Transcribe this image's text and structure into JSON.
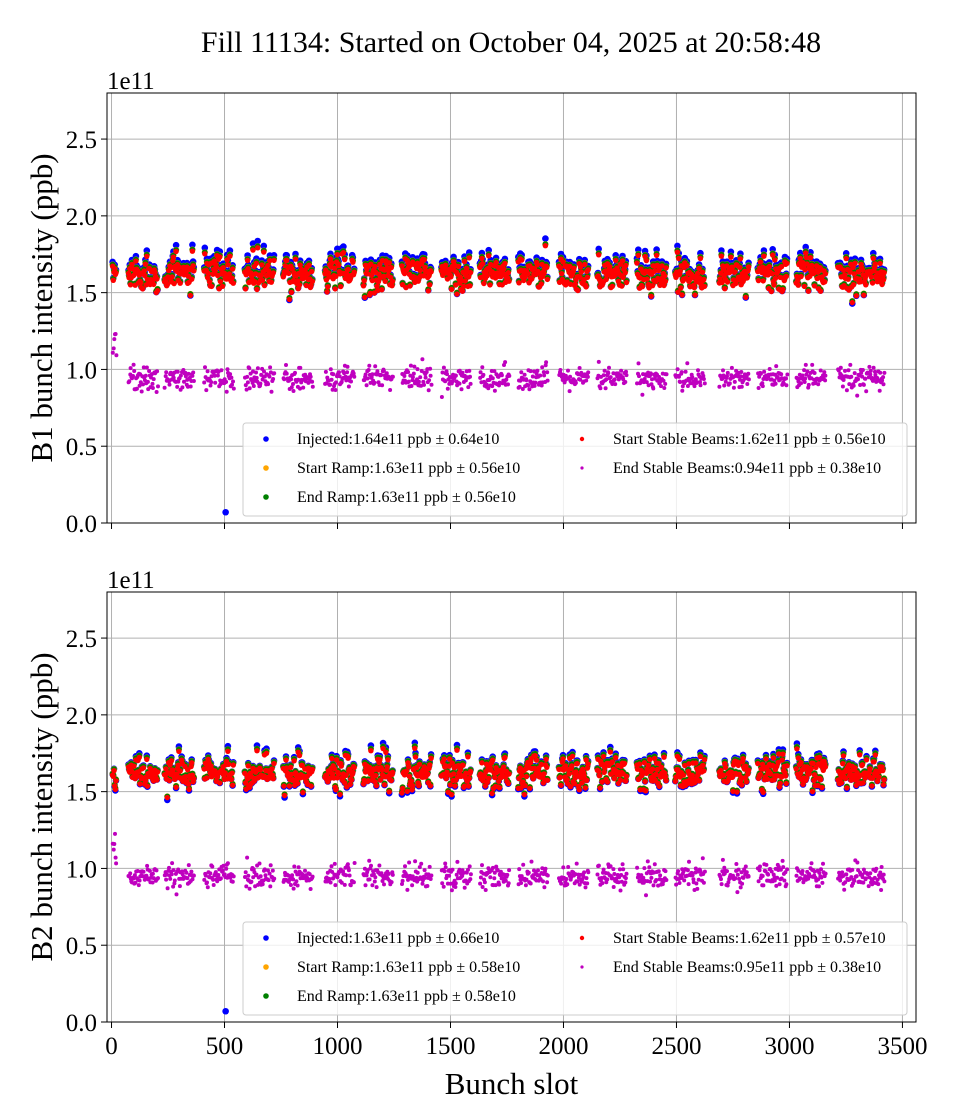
{
  "title": "Fill 11134: Started on October 04, 2025 at 20:58:48",
  "chart_data": [
    {
      "type": "scatter",
      "ylabel": "B1 bunch intensity (ppb)",
      "xlabel": "",
      "offset_text": "1e11",
      "xlim": [
        -20,
        3560
      ],
      "ylim": [
        0,
        2.8
      ],
      "xticks": [
        0,
        500,
        1000,
        1500,
        2000,
        2500,
        3000,
        3500
      ],
      "xtick_labels_shown": false,
      "yticks": [
        "0.0",
        "0.5",
        "1.0",
        "1.5",
        "2.0",
        "2.5"
      ],
      "grid": true,
      "legend_position": "lower-right",
      "bunch_trains": [
        [
          5,
          20
        ],
        [
          75,
          205
        ],
        [
          235,
          365
        ],
        [
          410,
          540
        ],
        [
          590,
          720
        ],
        [
          760,
          890
        ],
        [
          945,
          1075
        ],
        [
          1115,
          1245
        ],
        [
          1285,
          1415
        ],
        [
          1460,
          1590
        ],
        [
          1630,
          1760
        ],
        [
          1800,
          1930
        ],
        [
          1980,
          2110
        ],
        [
          2150,
          2280
        ],
        [
          2325,
          2455
        ],
        [
          2495,
          2625
        ],
        [
          2690,
          2820
        ],
        [
          2860,
          2990
        ],
        [
          3030,
          3160
        ],
        [
          3215,
          3345
        ],
        [
          3350,
          3420
        ]
      ],
      "series": [
        {
          "name": "Injected",
          "label": "Injected:1.64e11 ppb ± 0.64e10",
          "color": "#0000ff",
          "mean": 1.64,
          "std": 0.064,
          "outliers": [
            [
              505,
              0.07
            ]
          ]
        },
        {
          "name": "Start Ramp",
          "label": "Start Ramp:1.63e11 ppb ± 0.56e10",
          "color": "#ffa500",
          "mean": 1.63,
          "std": 0.056
        },
        {
          "name": "End Ramp",
          "label": "End Ramp:1.63e11 ppb ± 0.56e10",
          "color": "#008000",
          "mean": 1.63,
          "std": 0.056
        },
        {
          "name": "Start Stable Beams",
          "label": "Start Stable Beams:1.62e11 ppb ± 0.56e10",
          "color": "#ff0000",
          "mean": 1.62,
          "std": 0.056
        },
        {
          "name": "End Stable Beams",
          "label": "End Stable Beams:0.94e11 ppb ± 0.38e10",
          "color": "#bf00bf",
          "mean": 0.94,
          "std": 0.038
        }
      ]
    },
    {
      "type": "scatter",
      "ylabel": "B2 bunch intensity (ppb)",
      "xlabel": "Bunch slot",
      "offset_text": "1e11",
      "xlim": [
        -20,
        3560
      ],
      "ylim": [
        0,
        2.8
      ],
      "xticks": [
        0,
        500,
        1000,
        1500,
        2000,
        2500,
        3000,
        3500
      ],
      "xtick_labels_shown": true,
      "yticks": [
        "0.0",
        "0.5",
        "1.0",
        "1.5",
        "2.0",
        "2.5"
      ],
      "grid": true,
      "legend_position": "lower-right",
      "bunch_trains": [
        [
          5,
          20
        ],
        [
          75,
          205
        ],
        [
          235,
          365
        ],
        [
          410,
          540
        ],
        [
          590,
          720
        ],
        [
          760,
          890
        ],
        [
          945,
          1075
        ],
        [
          1115,
          1245
        ],
        [
          1285,
          1415
        ],
        [
          1460,
          1590
        ],
        [
          1630,
          1760
        ],
        [
          1800,
          1930
        ],
        [
          1980,
          2110
        ],
        [
          2150,
          2280
        ],
        [
          2325,
          2455
        ],
        [
          2495,
          2625
        ],
        [
          2690,
          2820
        ],
        [
          2860,
          2990
        ],
        [
          3030,
          3160
        ],
        [
          3215,
          3345
        ],
        [
          3350,
          3420
        ]
      ],
      "series": [
        {
          "name": "Injected",
          "label": "Injected:1.63e11 ppb ± 0.66e10",
          "color": "#0000ff",
          "mean": 1.63,
          "std": 0.066,
          "outliers": [
            [
              505,
              0.07
            ]
          ]
        },
        {
          "name": "Start Ramp",
          "label": "Start Ramp:1.63e11 ppb ± 0.58e10",
          "color": "#ffa500",
          "mean": 1.63,
          "std": 0.058
        },
        {
          "name": "End Ramp",
          "label": "End Ramp:1.63e11 ppb ± 0.58e10",
          "color": "#008000",
          "mean": 1.63,
          "std": 0.058
        },
        {
          "name": "Start Stable Beams",
          "label": "Start Stable Beams:1.62e11 ppb ± 0.57e10",
          "color": "#ff0000",
          "mean": 1.62,
          "std": 0.057
        },
        {
          "name": "End Stable Beams",
          "label": "End Stable Beams:0.95e11 ppb ± 0.38e10",
          "color": "#bf00bf",
          "mean": 0.95,
          "std": 0.038
        }
      ]
    }
  ]
}
